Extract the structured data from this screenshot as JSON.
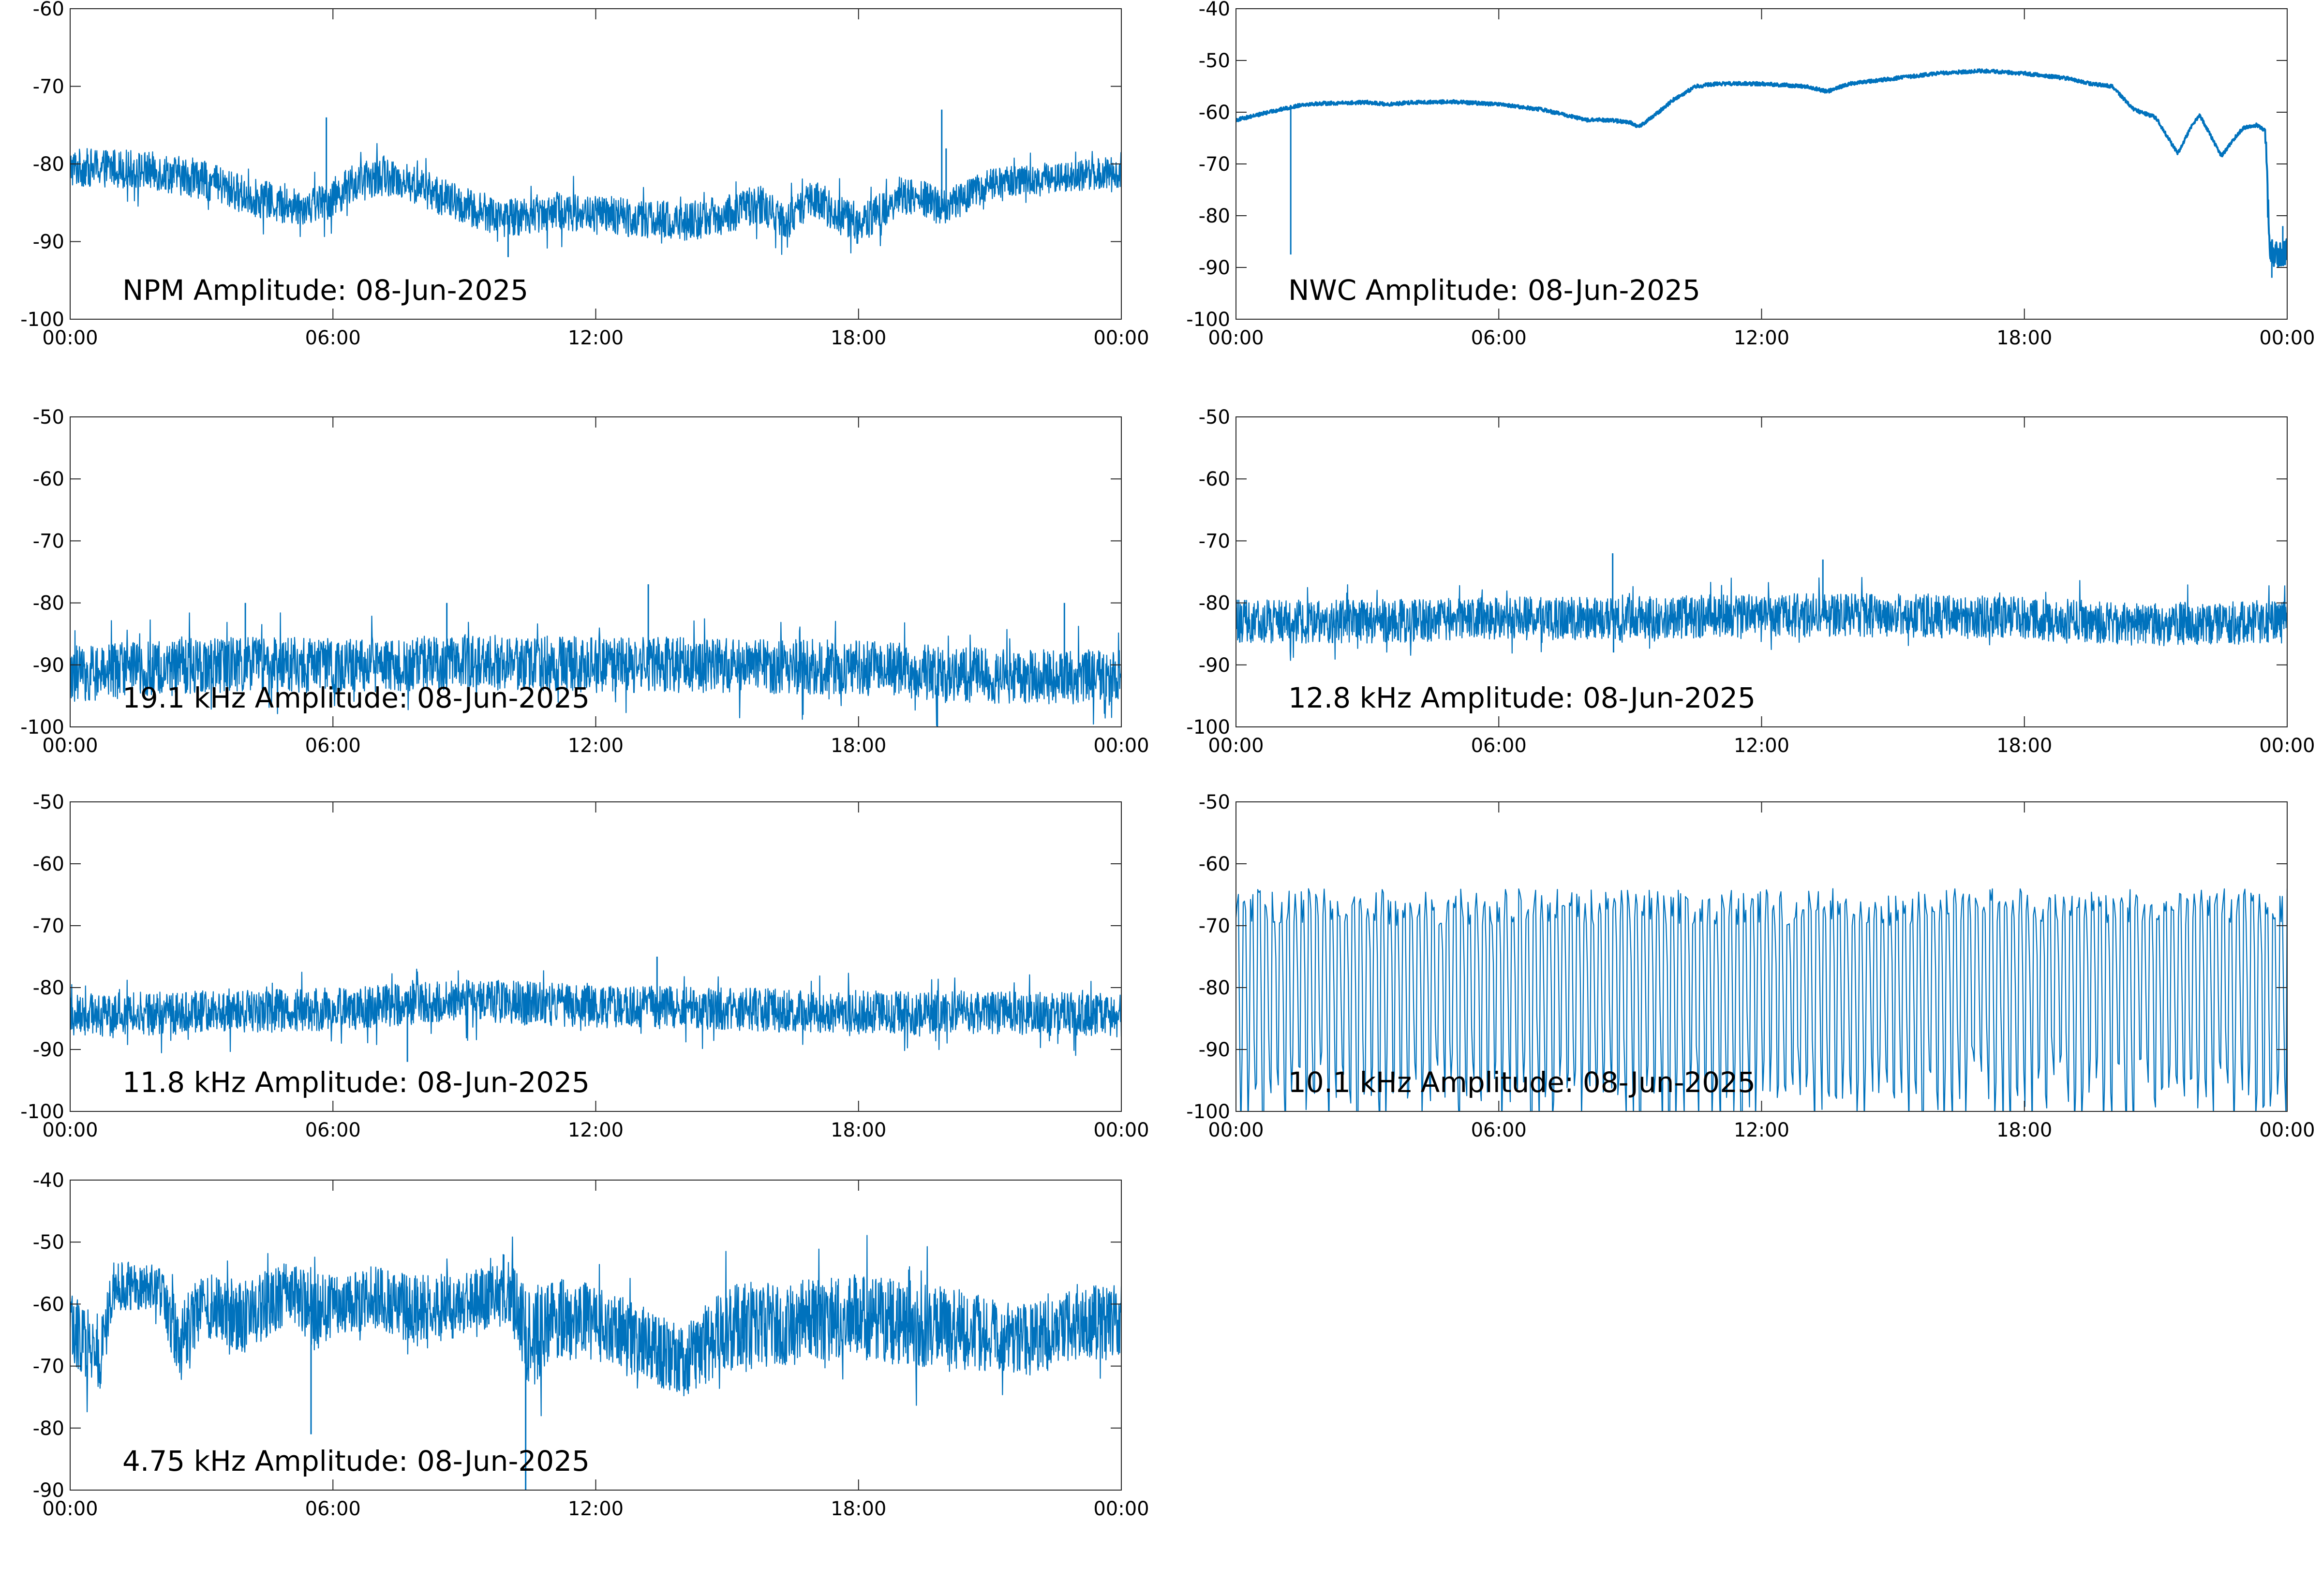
{
  "figure": {
    "line_color": "#0072BD",
    "background": "#ffffff",
    "axes_color": "#262626"
  },
  "chart_data": [
    {
      "type": "line",
      "title": "NPM Amplitude: 08-Jun-2025",
      "x_ticks": [
        "00:00",
        "06:00",
        "12:00",
        "18:00",
        "00:00"
      ],
      "xlim_hours": [
        0,
        24
      ],
      "ylim": [
        -100,
        -60
      ],
      "y_ticks": [
        -60,
        -70,
        -80,
        -90,
        -100
      ],
      "grid": false,
      "series": [
        {
          "style": "noisy-band",
          "x_hours": [
            0,
            1,
            2,
            3,
            4,
            5,
            5.8,
            6.5,
            7.2,
            8,
            9,
            10,
            11,
            12,
            13,
            14,
            15,
            15.7,
            16.3,
            17,
            18,
            19,
            20,
            21,
            22,
            23,
            24
          ],
          "center": [
            -80.5,
            -80.5,
            -81,
            -82,
            -84,
            -85.5,
            -85,
            -82.5,
            -81.5,
            -83,
            -85.5,
            -87,
            -86,
            -86.5,
            -87,
            -87.5,
            -86.5,
            -85,
            -87.5,
            -84.5,
            -88,
            -84,
            -85.5,
            -82.5,
            -82,
            -81.5,
            -81
          ],
          "half_width": [
            2.5,
            2.5,
            2.5,
            2.5,
            2.5,
            2.5,
            2.5,
            2.5,
            2.5,
            2.5,
            2.5,
            2.5,
            2.5,
            2.5,
            2.5,
            2.5,
            2.5,
            2.5,
            2.5,
            2.5,
            2.5,
            2.5,
            2.5,
            2,
            2,
            2,
            2
          ],
          "spikes": [
            {
              "x_hours": 5.85,
              "y": -74
            },
            {
              "x_hours": 10.0,
              "y": -92
            },
            {
              "x_hours": 19.9,
              "y": -73
            },
            {
              "x_hours": 20.0,
              "y": -78
            }
          ]
        }
      ]
    },
    {
      "type": "line",
      "title": "NWC Amplitude: 08-Jun-2025",
      "x_ticks": [
        "00:00",
        "06:00",
        "12:00",
        "18:00",
        "00:00"
      ],
      "xlim_hours": [
        0,
        24
      ],
      "ylim": [
        -100,
        -40
      ],
      "y_ticks": [
        -40,
        -50,
        -60,
        -70,
        -80,
        -90,
        -100
      ],
      "grid": false,
      "series": [
        {
          "style": "smooth",
          "x_hours": [
            0,
            0.5,
            1.0,
            1.3,
            1.5,
            2,
            3,
            3.5,
            4,
            5,
            6,
            7,
            7.5,
            8,
            8.5,
            9,
            9.2,
            9.5,
            10,
            10.5,
            11,
            12,
            13,
            13.5,
            14,
            15,
            16,
            17,
            18,
            19,
            19.5,
            20,
            20.5,
            21,
            21.5,
            21.8,
            22,
            22.5,
            22.8,
            23,
            23.3,
            23.5,
            23.6,
            24
          ],
          "y": [
            -61.5,
            -60.5,
            -59.5,
            -59,
            -58.5,
            -58.3,
            -58.1,
            -58.5,
            -58.1,
            -58,
            -58.5,
            -59.5,
            -60.5,
            -61.5,
            -61.5,
            -62,
            -62.8,
            -61,
            -57.5,
            -55,
            -54.5,
            -54.5,
            -55,
            -56,
            -54.5,
            -53.5,
            -52.5,
            -52,
            -52.5,
            -53.5,
            -54.5,
            -55,
            -59.5,
            -61,
            -68,
            -63,
            -60.5,
            -68.5,
            -65,
            -63,
            -62.5,
            -63.5,
            -87,
            -87
          ],
          "spikes": [
            {
              "x_hours": 1.25,
              "y": -87.5
            },
            {
              "x_hours": 23.65,
              "y": -92
            },
            {
              "x_hours": 23.9,
              "y": -82
            }
          ]
        }
      ]
    },
    {
      "type": "line",
      "title": "19.1 kHz Amplitude: 08-Jun-2025",
      "x_ticks": [
        "00:00",
        "06:00",
        "12:00",
        "18:00",
        "00:00"
      ],
      "xlim_hours": [
        0,
        24
      ],
      "ylim": [
        -100,
        -50
      ],
      "y_ticks": [
        -50,
        -60,
        -70,
        -80,
        -90,
        -100
      ],
      "grid": false,
      "series": [
        {
          "style": "noisy-band",
          "x_hours": [
            0,
            3,
            6,
            9,
            12,
            15,
            18,
            20,
            22,
            24
          ],
          "center": [
            -91.5,
            -90,
            -90,
            -89.5,
            -90,
            -90,
            -90.5,
            -91.5,
            -92,
            -92
          ],
          "half_width": [
            4.5,
            4.5,
            4.5,
            4.5,
            4.5,
            4.5,
            4.5,
            4.5,
            4.5,
            4.5
          ],
          "spikes": [
            {
              "x_hours": 4.0,
              "y": -80
            },
            {
              "x_hours": 8.6,
              "y": -80
            },
            {
              "x_hours": 13.2,
              "y": -77
            },
            {
              "x_hours": 19.8,
              "y": -100
            },
            {
              "x_hours": 22.7,
              "y": -80
            }
          ]
        }
      ]
    },
    {
      "type": "line",
      "title": "12.8 kHz Amplitude: 08-Jun-2025",
      "x_ticks": [
        "00:00",
        "06:00",
        "12:00",
        "18:00",
        "00:00"
      ],
      "xlim_hours": [
        0,
        24
      ],
      "ylim": [
        -100,
        -50
      ],
      "y_ticks": [
        -50,
        -60,
        -70,
        -80,
        -90,
        -100
      ],
      "grid": false,
      "series": [
        {
          "style": "noisy-band",
          "x_hours": [
            0,
            3,
            6,
            9,
            12,
            15,
            18,
            21,
            24
          ],
          "center": [
            -83,
            -83,
            -82.5,
            -82.5,
            -82,
            -82,
            -82.5,
            -83.5,
            -83
          ],
          "half_width": [
            3.5,
            3.5,
            3.5,
            3.5,
            3.5,
            3.5,
            3.5,
            3.5,
            3.5
          ],
          "spikes": [
            {
              "x_hours": 8.6,
              "y": -72
            },
            {
              "x_hours": 8.62,
              "y": -88
            },
            {
              "x_hours": 13.4,
              "y": -73
            }
          ]
        }
      ]
    },
    {
      "type": "line",
      "title": "11.8 kHz Amplitude: 08-Jun-2025",
      "x_ticks": [
        "00:00",
        "06:00",
        "12:00",
        "18:00",
        "00:00"
      ],
      "xlim_hours": [
        0,
        24
      ],
      "ylim": [
        -100,
        -50
      ],
      "y_ticks": [
        -50,
        -60,
        -70,
        -80,
        -90,
        -100
      ],
      "grid": false,
      "series": [
        {
          "style": "noisy-band",
          "x_hours": [
            0,
            3,
            6,
            8.5,
            9,
            12,
            15,
            18,
            21,
            24
          ],
          "center": [
            -84.5,
            -84,
            -83.5,
            -82.5,
            -82,
            -83,
            -83.5,
            -84,
            -84,
            -84.5
          ],
          "half_width": [
            3.5,
            3.5,
            3.5,
            3.5,
            3.5,
            3.5,
            3.5,
            3.5,
            3.5,
            3.5
          ],
          "spikes": [
            {
              "x_hours": 7.7,
              "y": -92
            },
            {
              "x_hours": 13.4,
              "y": -75
            }
          ]
        }
      ]
    },
    {
      "type": "line",
      "title": "10.1 kHz Amplitude: 08-Jun-2025",
      "x_ticks": [
        "00:00",
        "06:00",
        "12:00",
        "18:00",
        "00:00"
      ],
      "xlim_hours": [
        0,
        24
      ],
      "ylim": [
        -100,
        -50
      ],
      "y_ticks": [
        -50,
        -60,
        -70,
        -80,
        -90,
        -100
      ],
      "grid": false,
      "series": [
        {
          "style": "oscillating",
          "x_hours": [
            0,
            24
          ],
          "top": [
            -67,
            -67
          ],
          "bottom": [
            -96,
            -96
          ],
          "cycles": 145
        }
      ]
    },
    {
      "type": "line",
      "title": "4.75 kHz Amplitude: 08-Jun-2025",
      "x_ticks": [
        "00:00",
        "06:00",
        "12:00",
        "18:00",
        "00:00"
      ],
      "xlim_hours": [
        0,
        24
      ],
      "ylim": [
        -90,
        -40
      ],
      "y_ticks": [
        -40,
        -50,
        -60,
        -70,
        -80,
        -90
      ],
      "grid": false,
      "series": [
        {
          "style": "noisy-band",
          "x_hours": [
            0,
            0.7,
            1,
            2,
            2.5,
            3,
            4,
            5,
            5.5,
            6,
            7,
            8,
            9,
            10,
            10.5,
            11,
            12,
            13,
            14,
            15,
            16,
            17,
            18,
            19,
            20,
            21,
            22,
            23,
            24
          ],
          "center": [
            -64,
            -68,
            -57,
            -57,
            -66,
            -60,
            -62,
            -58,
            -62,
            -60,
            -59,
            -61,
            -60,
            -58,
            -66,
            -62,
            -63,
            -66,
            -69,
            -64,
            -63,
            -63,
            -62,
            -63,
            -64,
            -65,
            -66,
            -63,
            -63
          ],
          "half_width": [
            6,
            6,
            4,
            4,
            6,
            5,
            6,
            5,
            7,
            5,
            5,
            6,
            5,
            5,
            8,
            7,
            6,
            6,
            6,
            7,
            7,
            7,
            7,
            7,
            7,
            6,
            6,
            6,
            6
          ],
          "spikes": [
            {
              "x_hours": 5.5,
              "y": -81
            },
            {
              "x_hours": 10.4,
              "y": -90
            },
            {
              "x_hours": 9.9,
              "y": -52
            }
          ]
        }
      ]
    }
  ]
}
